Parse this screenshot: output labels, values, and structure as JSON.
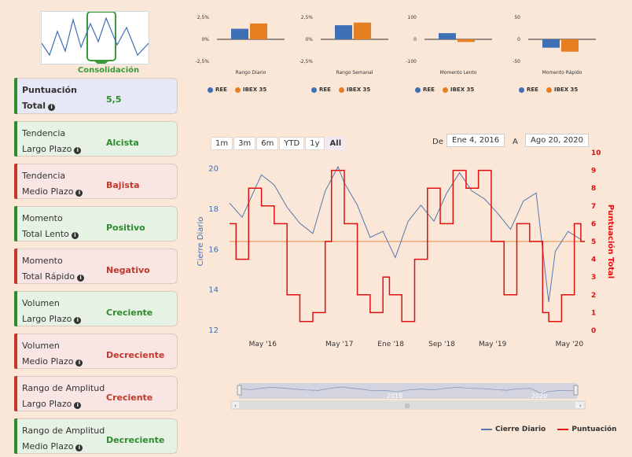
{
  "summary": {
    "thumbnail_label": "Consolidación",
    "cards": [
      {
        "line1": "Puntuación",
        "line2": "Total",
        "value": "5,5",
        "tone": "neu"
      },
      {
        "line1": "Tendencia",
        "line2": "Largo Plazo",
        "value": "Alcista",
        "tone": "pos"
      },
      {
        "line1": "Tendencia",
        "line2": "Medio Plazo",
        "value": "Bajista",
        "tone": "neg"
      },
      {
        "line1": "Momento",
        "line2": "Total Lento",
        "value": "Positivo",
        "tone": "pos"
      },
      {
        "line1": "Momento",
        "line2": "Total Rápido",
        "value": "Negativo",
        "tone": "neg"
      },
      {
        "line1": "Volumen",
        "line2": "Largo Plazo",
        "value": "Creciente",
        "tone": "pos"
      },
      {
        "line1": "Volumen",
        "line2": "Medio Plazo",
        "value": "Decreciente",
        "tone": "neg"
      },
      {
        "line1": "Rango de Amplitud",
        "line2": "Largo Plazo",
        "value": "Creciente",
        "tone": "neg"
      },
      {
        "line1": "Rango de Amplitud",
        "line2": "Medio Plazo",
        "value": "Decreciente",
        "tone": "pos"
      }
    ]
  },
  "colors": {
    "ree": "#3f6fb5",
    "ibex": "#e67e22",
    "cierre": "#5577aa",
    "puntuacion": "#e01010",
    "zero_line": "#f0a878"
  },
  "chart_data": [
    {
      "type": "bar",
      "title": "Rango Diario",
      "categories": [
        "REE",
        "IBEX 35"
      ],
      "values": [
        1.2,
        1.8
      ],
      "ylim": [
        -2.5,
        2.5
      ],
      "ytick_labels": [
        "2,5%",
        "0%",
        "-2,5%"
      ]
    },
    {
      "type": "bar",
      "title": "Rango Semanal",
      "categories": [
        "REE",
        "IBEX 35"
      ],
      "values": [
        1.6,
        1.9
      ],
      "ylim": [
        -2.5,
        2.5
      ],
      "ytick_labels": [
        "2,5%",
        "0%",
        "-2,5%"
      ]
    },
    {
      "type": "bar",
      "title": "Momento Lento",
      "categories": [
        "REE",
        "IBEX 35"
      ],
      "values": [
        28,
        -12
      ],
      "ylim": [
        -100,
        100
      ],
      "ytick_labels": [
        "100",
        "0",
        "-100"
      ]
    },
    {
      "type": "bar",
      "title": "Momento Rápido",
      "categories": [
        "REE",
        "IBEX 35"
      ],
      "values": [
        -19,
        -28
      ],
      "ylim": [
        -50,
        50
      ],
      "ytick_labels": [
        "50",
        "0",
        "-50"
      ]
    },
    {
      "type": "line",
      "ylabel": "Cierre Diario",
      "y2label": "Puntuación Total",
      "ylim": [
        12,
        20.8
      ],
      "y2lim": [
        0,
        10
      ],
      "yticks": [
        12,
        14,
        16,
        18,
        20
      ],
      "y2ticks": [
        0,
        1,
        2,
        3,
        4,
        5,
        6,
        7,
        8,
        9,
        10
      ],
      "xtick_labels": [
        "May '16",
        "May '17",
        "Ene '18",
        "Sep '18",
        "May '19",
        "May '20"
      ],
      "series": [
        {
          "name": "Cierre Diario",
          "x": [
            "2016-01",
            "2016-03",
            "2016-05",
            "2016-06",
            "2016-08",
            "2016-10",
            "2016-12",
            "2017-02",
            "2017-04",
            "2017-06",
            "2017-07",
            "2017-09",
            "2017-11",
            "2018-01",
            "2018-03",
            "2018-05",
            "2018-07",
            "2018-09",
            "2018-11",
            "2019-01",
            "2019-03",
            "2019-05",
            "2019-07",
            "2019-09",
            "2019-11",
            "2020-01",
            "2020-03",
            "2020-04",
            "2020-06",
            "2020-08"
          ],
          "values": [
            18.3,
            17.6,
            19.0,
            19.7,
            19.2,
            18.1,
            17.3,
            16.8,
            18.9,
            20.1,
            19.3,
            18.2,
            16.6,
            16.9,
            15.6,
            17.4,
            18.2,
            17.4,
            18.8,
            19.8,
            18.9,
            18.5,
            17.8,
            17.0,
            18.4,
            18.8,
            13.4,
            15.9,
            16.9,
            16.5
          ]
        },
        {
          "name": "Puntuación",
          "x": [
            "2016-01",
            "2016-02",
            "2016-04",
            "2016-06",
            "2016-08",
            "2016-10",
            "2016-12",
            "2017-02",
            "2017-04",
            "2017-05",
            "2017-07",
            "2017-09",
            "2017-11",
            "2018-01",
            "2018-02",
            "2018-04",
            "2018-06",
            "2018-08",
            "2018-10",
            "2018-12",
            "2019-02",
            "2019-04",
            "2019-06",
            "2019-08",
            "2019-10",
            "2019-12",
            "2020-02",
            "2020-03",
            "2020-05",
            "2020-07",
            "2020-08"
          ],
          "values": [
            6,
            4,
            8,
            7,
            6,
            2,
            0.5,
            1,
            5,
            9,
            6,
            2,
            1,
            3,
            2,
            0.5,
            4,
            8,
            6,
            9,
            8,
            9,
            5,
            2,
            6,
            5,
            1,
            0.5,
            2,
            6,
            5
          ]
        }
      ]
    }
  ],
  "controls": {
    "range_buttons": [
      {
        "label": "1m"
      },
      {
        "label": "3m"
      },
      {
        "label": "6m"
      },
      {
        "label": "YTD"
      },
      {
        "label": "1y"
      },
      {
        "label": "All"
      }
    ],
    "from_label": "De",
    "from_date": "Ene 4, 2016",
    "to_label": "A",
    "to_date": "Ago 20, 2020"
  },
  "navigator": {
    "labels": [
      "2018",
      "2020"
    ]
  }
}
